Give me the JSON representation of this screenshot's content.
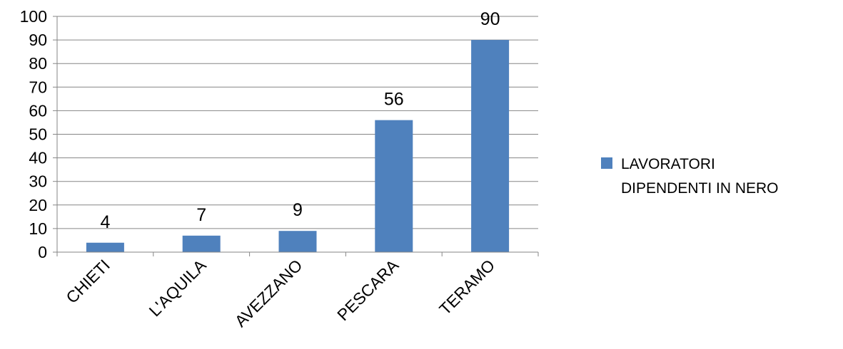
{
  "chart_data": {
    "type": "bar",
    "categories": [
      "CHIETI",
      "L'AQUILA",
      "AVEZZANO",
      "PESCARA",
      "TERAMO"
    ],
    "series": [
      {
        "name": "LAVORATORI DIPENDENTI IN NERO",
        "values": [
          4,
          7,
          9,
          56,
          90
        ],
        "color": "#4F81BD"
      }
    ],
    "ylim": [
      0,
      100
    ],
    "yticks": [
      0,
      10,
      20,
      30,
      40,
      50,
      60,
      70,
      80,
      90,
      100
    ],
    "grid": true,
    "legend_position": "right",
    "data_labels": true,
    "xlabel_rotation": -45
  },
  "legend": {
    "line1": "LAVORATORI",
    "line2": "DIPENDENTI IN NERO"
  }
}
